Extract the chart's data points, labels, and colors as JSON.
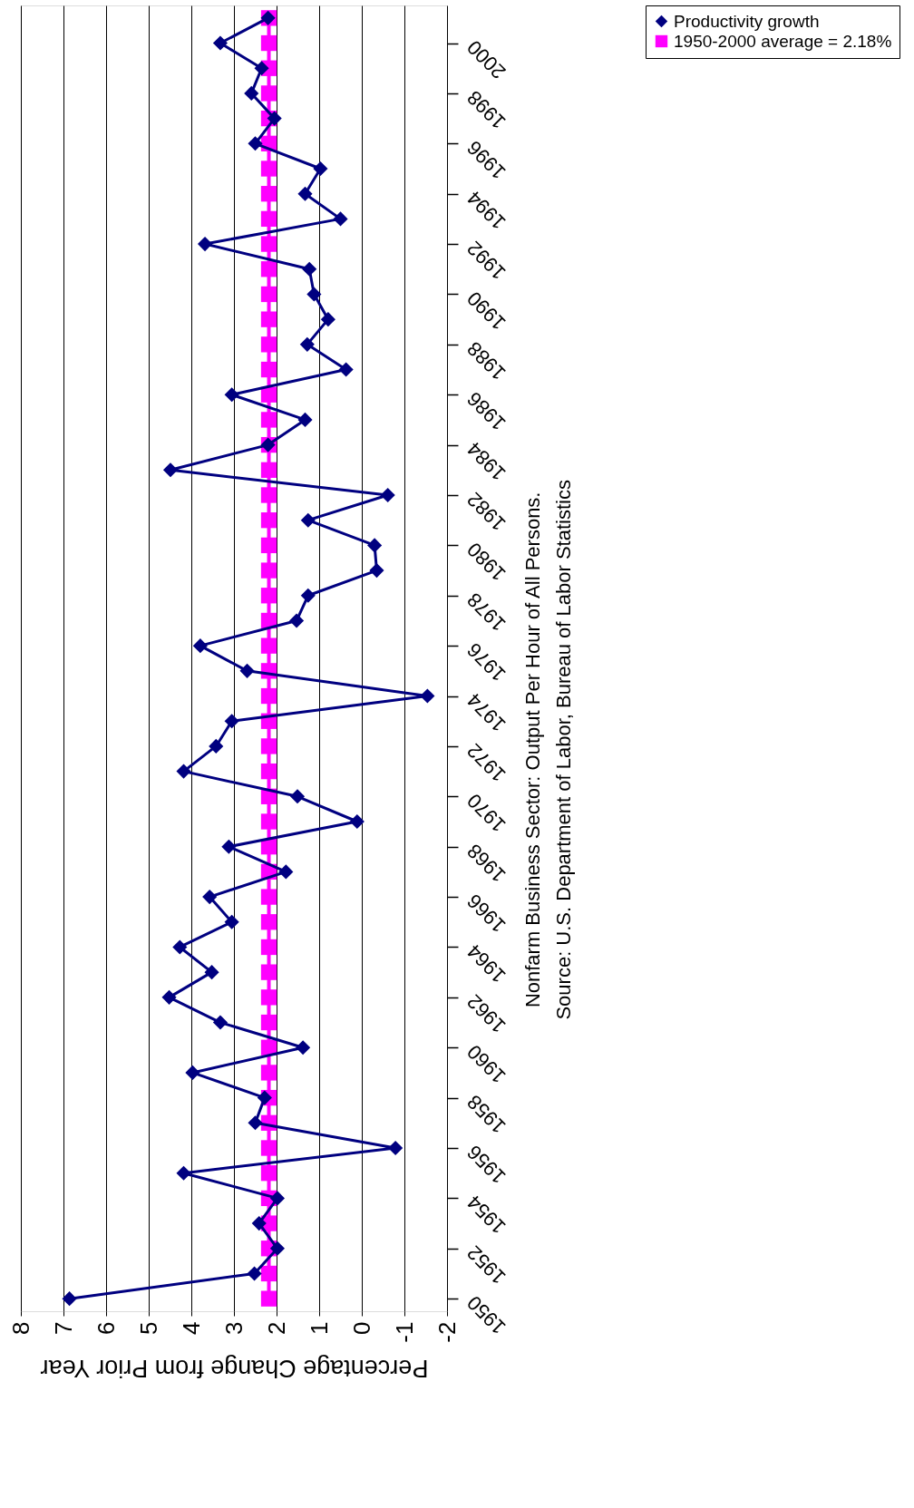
{
  "chart_data": {
    "type": "line",
    "orientation": "horizontal",
    "xlabel": "Percentage Change from Prior Year",
    "annotations": [
      "Nonfarm Business Sector:  Output Per Hour of All Persons.",
      "Source: U.S. Department of Labor, Bureau of Labor Statistics"
    ],
    "x": [
      1950,
      1951,
      1952,
      1953,
      1954,
      1955,
      1956,
      1957,
      1958,
      1959,
      1960,
      1961,
      1962,
      1963,
      1964,
      1965,
      1966,
      1967,
      1968,
      1969,
      1970,
      1971,
      1972,
      1973,
      1974,
      1975,
      1976,
      1977,
      1978,
      1979,
      1980,
      1981,
      1982,
      1983,
      1984,
      1985,
      1986,
      1987,
      1988,
      1989,
      1990,
      1991,
      1992,
      1993,
      1994,
      1995,
      1996,
      1997,
      1998,
      1999,
      2000,
      2001
    ],
    "series": [
      {
        "name": "Productivity growth",
        "color": "#000080",
        "marker": "diamond",
        "values": [
          6.86,
          2.52,
          1.98,
          2.41,
          1.98,
          4.18,
          -0.79,
          2.5,
          2.28,
          3.97,
          1.38,
          3.32,
          4.52,
          3.52,
          4.27,
          3.05,
          3.57,
          1.78,
          3.12,
          0.11,
          1.51,
          4.18,
          3.42,
          3.05,
          -1.54,
          2.69,
          3.79,
          1.53,
          1.26,
          -0.35,
          -0.3,
          1.26,
          -0.61,
          4.49,
          2.2,
          1.33,
          3.05,
          0.37,
          1.28,
          0.79,
          1.12,
          1.23,
          3.68,
          0.5,
          1.33,
          0.97,
          2.5,
          2.05,
          2.59,
          2.35,
          3.32,
          2.2
        ]
      },
      {
        "name": "1950-2000 average = 2.18%",
        "color": "#ff00ff",
        "marker": "square",
        "values": [
          2.18,
          2.18,
          2.18,
          2.18,
          2.18,
          2.18,
          2.18,
          2.18,
          2.18,
          2.18,
          2.18,
          2.18,
          2.18,
          2.18,
          2.18,
          2.18,
          2.18,
          2.18,
          2.18,
          2.18,
          2.18,
          2.18,
          2.18,
          2.18,
          2.18,
          2.18,
          2.18,
          2.18,
          2.18,
          2.18,
          2.18,
          2.18,
          2.18,
          2.18,
          2.18,
          2.18,
          2.18,
          2.18,
          2.18,
          2.18,
          2.18,
          2.18,
          2.18,
          2.18,
          2.18,
          2.18,
          2.18,
          2.18,
          2.18,
          2.18,
          2.18,
          2.18
        ]
      }
    ],
    "xlim": [
      8,
      -2
    ],
    "xticks": [
      8,
      7,
      6,
      5,
      4,
      3,
      2,
      1,
      0,
      -1,
      -2
    ],
    "ylim": [
      1949.5,
      2001.5
    ],
    "yticks": [
      1950,
      1952,
      1954,
      1956,
      1958,
      1960,
      1962,
      1964,
      1966,
      1968,
      1970,
      1972,
      1974,
      1976,
      1978,
      1980,
      1982,
      1984,
      1986,
      1988,
      1990,
      1992,
      1994,
      1996,
      1998,
      2000
    ],
    "grid": "x",
    "legend": "right",
    "line_style": "solid"
  }
}
